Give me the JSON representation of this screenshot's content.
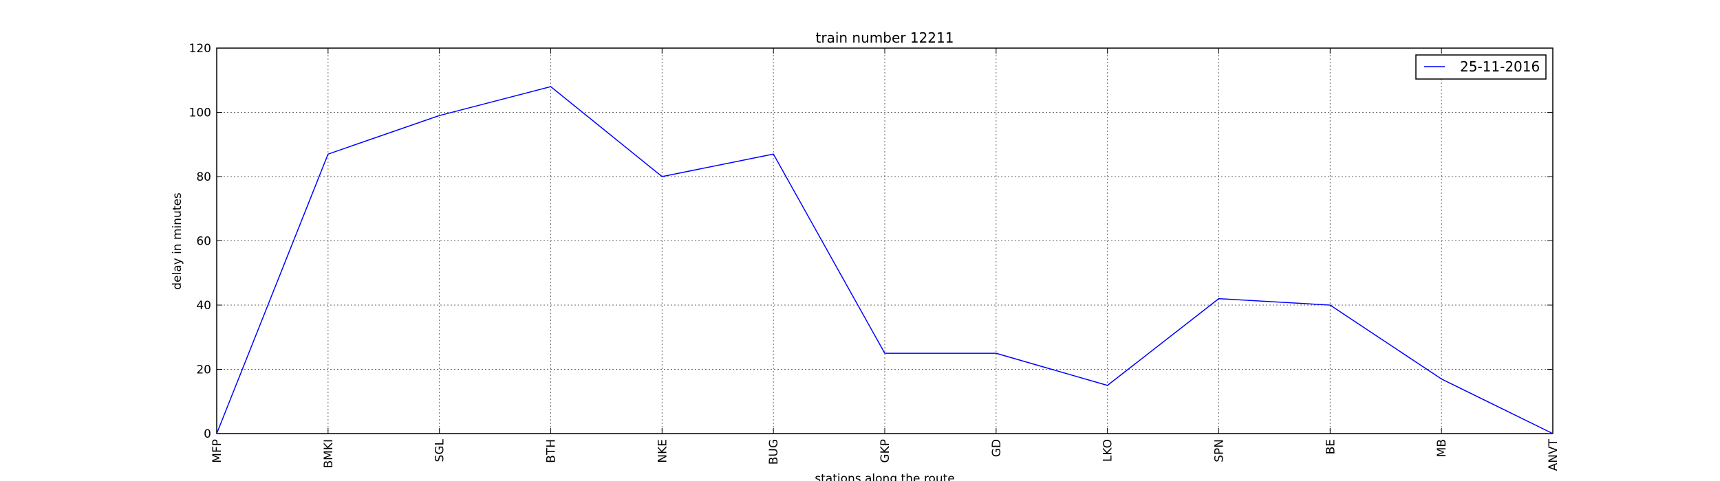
{
  "chart_data": {
    "type": "line",
    "title": "train number 12211",
    "xlabel": "stations along the route",
    "ylabel": "delay in minutes",
    "categories": [
      "MFP",
      "BMKI",
      "SGL",
      "BTH",
      "NKE",
      "BUG",
      "GKP",
      "GD",
      "LKO",
      "SPN",
      "BE",
      "MB",
      "ANVT"
    ],
    "series": [
      {
        "name": "25-11-2016",
        "color": "#0000ff",
        "values": [
          0,
          87,
          99,
          108,
          80,
          87,
          25,
          25,
          15,
          42,
          40,
          17,
          0
        ]
      }
    ],
    "yticks": [
      "0",
      "20",
      "40",
      "60",
      "80",
      "100",
      "120"
    ],
    "ylim": [
      0,
      120
    ],
    "grid": true,
    "legend_position": "top-right"
  }
}
